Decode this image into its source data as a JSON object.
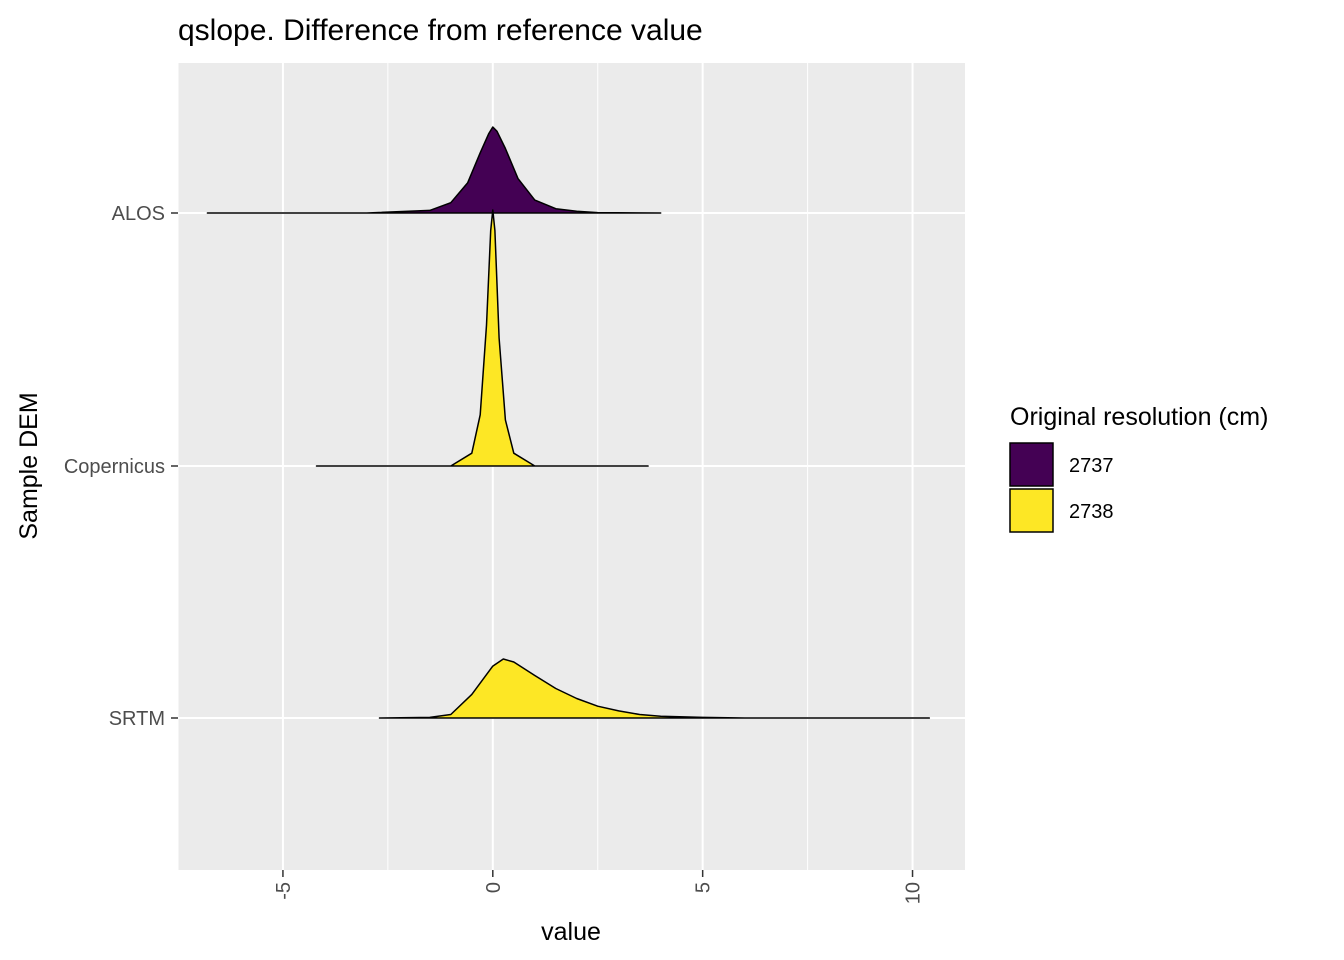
{
  "chart_data": {
    "type": "ridgeline-density",
    "title": "qslope. Difference from reference value",
    "xlabel": "value",
    "ylabel": "Sample DEM",
    "xlim": [
      -7.5,
      11.25
    ],
    "x_ticks": [
      -5,
      0,
      5,
      10
    ],
    "x_tick_rotation": -90,
    "grid": true,
    "legend": {
      "title": "Original resolution (cm)",
      "position": "right",
      "entries": [
        {
          "label": "2737",
          "color": "#440154"
        },
        {
          "label": "2738",
          "color": "#FDE725"
        }
      ]
    },
    "categories": [
      "ALOS",
      "Copernicus",
      "SRTM"
    ],
    "series": [
      {
        "category": "ALOS",
        "resolution": "2737",
        "color": "#440154",
        "x": [
          -6.8,
          -3.0,
          -1.5,
          -1.0,
          -0.6,
          -0.3,
          -0.1,
          0.0,
          0.1,
          0.3,
          0.6,
          1.0,
          1.5,
          2.0,
          2.5,
          4.0
        ],
        "density": [
          0.0,
          0.0,
          0.03,
          0.12,
          0.35,
          0.7,
          0.92,
          1.0,
          0.95,
          0.75,
          0.4,
          0.15,
          0.05,
          0.02,
          0.005,
          0.0
        ]
      },
      {
        "category": "Copernicus",
        "resolution": "2738",
        "color": "#FDE725",
        "x": [
          -4.2,
          -1.0,
          -0.5,
          -0.3,
          -0.15,
          -0.05,
          0.0,
          0.05,
          0.15,
          0.3,
          0.5,
          1.0,
          3.7
        ],
        "density": [
          0.0,
          0.0,
          0.05,
          0.2,
          0.55,
          0.92,
          1.0,
          0.92,
          0.5,
          0.18,
          0.05,
          0.0,
          0.0
        ]
      },
      {
        "category": "SRTM",
        "resolution": "2738",
        "color": "#FDE725",
        "x": [
          -2.7,
          -1.5,
          -1.0,
          -0.5,
          0.0,
          0.25,
          0.5,
          1.0,
          1.5,
          2.0,
          2.5,
          3.0,
          3.5,
          4.0,
          5.0,
          6.0,
          10.4
        ],
        "density": [
          0.0,
          0.01,
          0.06,
          0.4,
          0.88,
          1.0,
          0.95,
          0.72,
          0.5,
          0.33,
          0.2,
          0.12,
          0.06,
          0.03,
          0.01,
          0.0,
          0.0
        ]
      }
    ],
    "colors": {
      "panel": "#EBEBEB",
      "grid": "#FFFFFF",
      "outline": "#000000",
      "tick": "#333333"
    }
  }
}
